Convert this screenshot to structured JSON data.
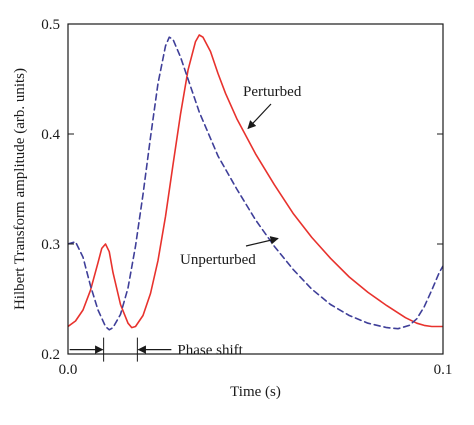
{
  "chart_data": {
    "type": "line",
    "xlabel": "Time (s)",
    "ylabel": "Hilbert Transform amplitude (arb. units)",
    "xlim": [
      0.0,
      0.1
    ],
    "ylim": [
      0.2,
      0.5
    ],
    "xticks": [
      0.0,
      0.1
    ],
    "xtick_labels": [
      "0.0",
      "0.1"
    ],
    "yticks": [
      0.2,
      0.3,
      0.4,
      0.5
    ],
    "ytick_labels": [
      "0.2",
      "0.3",
      "0.4",
      "0.5"
    ],
    "grid": false,
    "legend": "none",
    "series": [
      {
        "name": "Perturbed",
        "color": "#e8322d",
        "style": "solid",
        "x": [
          0.0,
          0.002,
          0.004,
          0.006,
          0.008,
          0.009,
          0.01,
          0.011,
          0.012,
          0.014,
          0.016,
          0.017,
          0.018,
          0.02,
          0.022,
          0.024,
          0.026,
          0.028,
          0.03,
          0.032,
          0.034,
          0.035,
          0.036,
          0.038,
          0.04,
          0.042,
          0.045,
          0.05,
          0.055,
          0.06,
          0.065,
          0.07,
          0.075,
          0.08,
          0.085,
          0.09,
          0.093,
          0.095,
          0.097,
          0.1
        ],
        "y": [
          0.225,
          0.23,
          0.24,
          0.258,
          0.283,
          0.296,
          0.3,
          0.293,
          0.274,
          0.245,
          0.228,
          0.224,
          0.225,
          0.235,
          0.255,
          0.285,
          0.325,
          0.372,
          0.418,
          0.458,
          0.484,
          0.49,
          0.488,
          0.475,
          0.455,
          0.437,
          0.414,
          0.382,
          0.354,
          0.328,
          0.306,
          0.287,
          0.27,
          0.256,
          0.244,
          0.233,
          0.228,
          0.226,
          0.225,
          0.225
        ]
      },
      {
        "name": "Unperturbed",
        "color": "#3f3f99",
        "style": "dashed",
        "x": [
          0.0,
          0.002,
          0.004,
          0.006,
          0.008,
          0.01,
          0.011,
          0.012,
          0.014,
          0.016,
          0.018,
          0.02,
          0.022,
          0.024,
          0.026,
          0.027,
          0.028,
          0.03,
          0.032,
          0.035,
          0.04,
          0.045,
          0.05,
          0.055,
          0.06,
          0.065,
          0.07,
          0.075,
          0.08,
          0.085,
          0.088,
          0.091,
          0.093,
          0.095,
          0.097,
          0.099,
          0.1
        ],
        "y": [
          0.3,
          0.302,
          0.288,
          0.262,
          0.24,
          0.225,
          0.222,
          0.224,
          0.236,
          0.26,
          0.298,
          0.345,
          0.397,
          0.446,
          0.48,
          0.488,
          0.486,
          0.47,
          0.45,
          0.42,
          0.38,
          0.35,
          0.322,
          0.298,
          0.277,
          0.259,
          0.245,
          0.235,
          0.228,
          0.224,
          0.223,
          0.226,
          0.232,
          0.243,
          0.258,
          0.274,
          0.28
        ]
      }
    ],
    "annotations": [
      {
        "text": "Perturbed",
        "arrow_to": [
          0.048,
          0.405
        ]
      },
      {
        "text": "Unperturbed",
        "arrow_to": [
          0.056,
          0.305
        ]
      },
      {
        "text": "Phase shift",
        "between_x": [
          0.0095,
          0.0185
        ],
        "at_y": 0.204
      }
    ]
  }
}
